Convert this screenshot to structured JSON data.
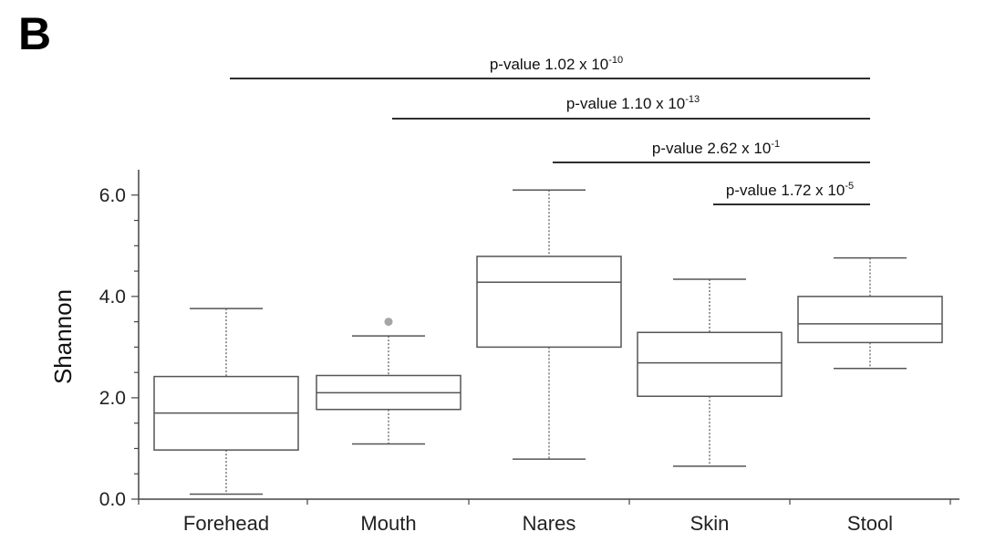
{
  "panel_label": "B",
  "chart_data": {
    "type": "boxplot",
    "title": "",
    "xlabel": "",
    "ylabel": "Shannon",
    "ylim": [
      0,
      6.5
    ],
    "yticks": [
      0,
      2,
      4,
      6
    ],
    "ytick_labels": [
      "0.0",
      "2.0",
      "4.0",
      "6.0"
    ],
    "categories": [
      "Forehead",
      "Mouth",
      "Nares",
      "Skin",
      "Stool"
    ],
    "boxes": [
      {
        "name": "Forehead",
        "whisker_low": 0.1,
        "q1": 0.97,
        "median": 1.7,
        "q3": 2.42,
        "whisker_high": 3.76,
        "outliers": []
      },
      {
        "name": "Mouth",
        "whisker_low": 1.09,
        "q1": 1.77,
        "median": 2.1,
        "q3": 2.44,
        "whisker_high": 3.22,
        "outliers": [
          3.5
        ]
      },
      {
        "name": "Nares",
        "whisker_low": 0.79,
        "q1": 3.0,
        "median": 4.28,
        "q3": 4.79,
        "whisker_high": 6.1,
        "outliers": []
      },
      {
        "name": "Skin",
        "whisker_low": 0.65,
        "q1": 2.03,
        "median": 2.69,
        "q3": 3.29,
        "whisker_high": 4.34,
        "outliers": []
      },
      {
        "name": "Stool",
        "whisker_low": 2.58,
        "q1": 3.09,
        "median": 3.46,
        "q3": 4.0,
        "whisker_high": 4.76,
        "outliers": []
      }
    ],
    "comparisons": [
      {
        "from": "Forehead",
        "to": "Stool",
        "label": "p-value 1.02 x 10",
        "exponent": "-10"
      },
      {
        "from": "Mouth",
        "to": "Stool",
        "label": "p-value 1.10 x 10",
        "exponent": "-13"
      },
      {
        "from": "Nares",
        "to": "Stool",
        "label": "p-value 2.62 x 10",
        "exponent": "-1"
      },
      {
        "from": "Skin",
        "to": "Stool",
        "label": "p-value 1.72 x 10",
        "exponent": "-5"
      }
    ]
  },
  "colors": {
    "box_stroke": "#555555",
    "axis": "#444444",
    "outlier": "#a6a6a6",
    "bracket": "#111111"
  }
}
